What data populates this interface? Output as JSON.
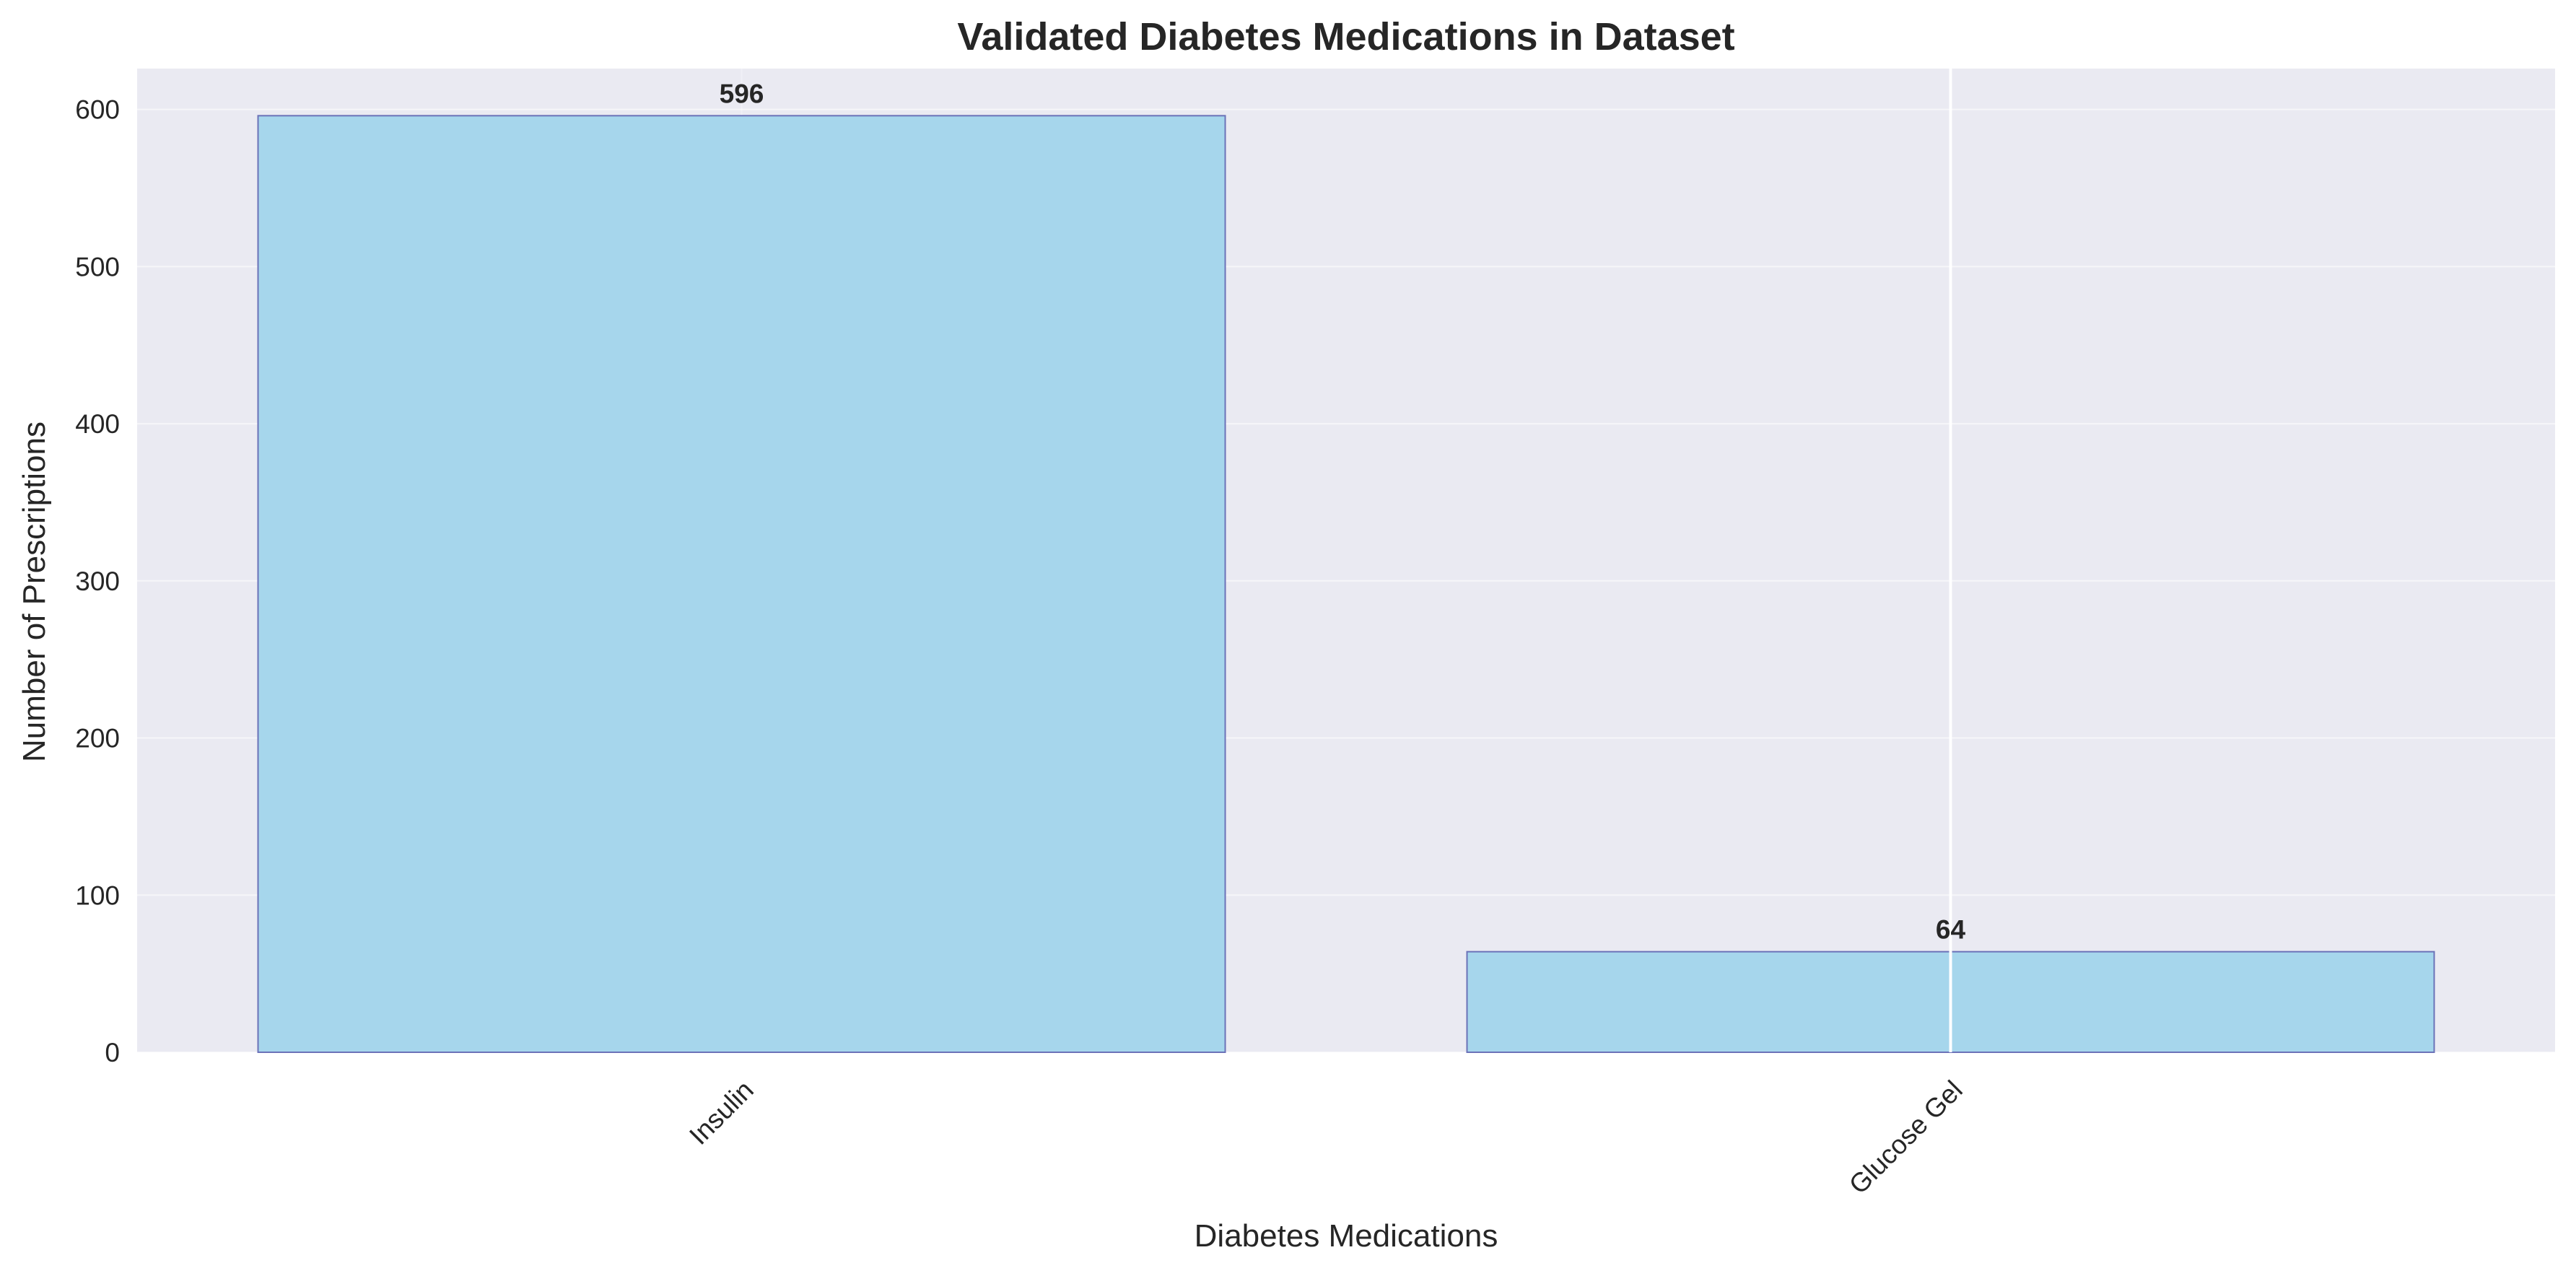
{
  "chart_data": {
    "type": "bar",
    "title": "Validated Diabetes Medications in Dataset",
    "xlabel": "Diabetes Medications",
    "ylabel": "Number of Prescriptions",
    "categories": [
      "Insulin",
      "Glucose Gel"
    ],
    "values": [
      596,
      64
    ],
    "value_labels": [
      "596",
      "64"
    ],
    "ylim": [
      0,
      626
    ],
    "yticks": [
      0,
      100,
      200,
      300,
      400,
      500,
      600
    ],
    "ytick_labels": [
      "0",
      "100",
      "200",
      "300",
      "400",
      "500",
      "600"
    ],
    "xtick_rotation": "45 degrees",
    "grid": true,
    "legend": "none",
    "colors": {
      "bar_fill": "#a6d6ec",
      "bar_edge": "#6b72b8",
      "plot_background": "#eaeaf2",
      "grid": "#ffffff",
      "text": "#262626"
    }
  }
}
